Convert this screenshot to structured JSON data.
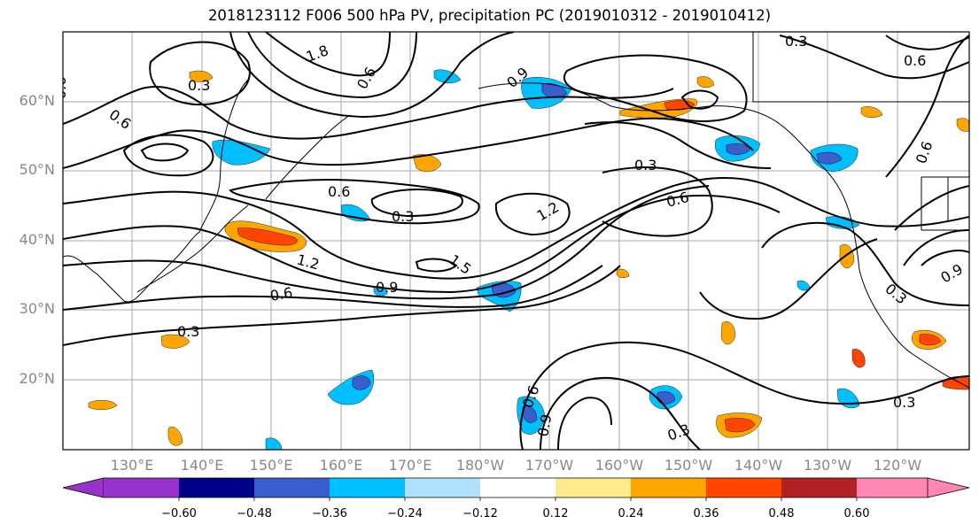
{
  "title": "2018123112 F006 500 hPa PV, precipitation PC (2019010312 - 2019010412)",
  "lat_labels": [
    "60°N",
    "50°N",
    "40°N",
    "30°N",
    "20°N"
  ],
  "lon_labels": [
    "130°E",
    "140°E",
    "150°E",
    "160°E",
    "170°E",
    "180°W",
    "170°W",
    "160°W",
    "150°W",
    "140°W",
    "130°W",
    "120°W"
  ],
  "colorbar": {
    "tick_labels": [
      "−0.60",
      "−0.48",
      "−0.36",
      "−0.24",
      "−0.12",
      "0.12",
      "0.24",
      "0.36",
      "0.48",
      "0.60"
    ],
    "colors": [
      "#9932CC",
      "#00008B",
      "#3A5FCD",
      "#00BFFF",
      "#B0E2FF",
      "#FFFFFF",
      "#FFE98A",
      "#FFA500",
      "#FF4500",
      "#B22222",
      "#FF86B4"
    ]
  },
  "contour_labels": [
    "0.3",
    "0.6",
    "0.9",
    "1.2",
    "1.5",
    "1.8"
  ],
  "contour_label_instances": [
    "0.3",
    "0.6",
    "1.8",
    "0.6",
    "0.3",
    "0.6",
    "1.2",
    "0.9",
    "0.6",
    "0.3",
    "0.3",
    "1.2",
    "1.5",
    "0.6",
    "0.3",
    "0.9",
    "0.6",
    "0.3",
    "0.6",
    "0.3",
    "0.3",
    "0.9",
    "0.9",
    "0.6",
    "0.6"
  ]
}
